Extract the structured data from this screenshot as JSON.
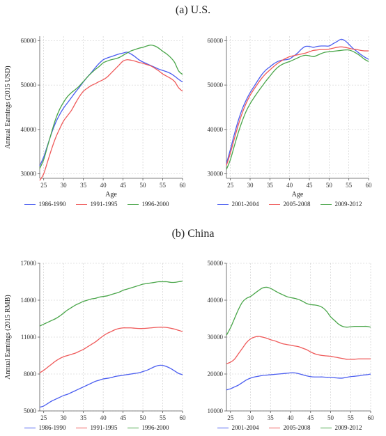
{
  "section_titles": {
    "us": "(a) U.S.",
    "china": "(b) China"
  },
  "colors": {
    "blue": "#4a5df0",
    "red": "#ef5a5a",
    "green": "#4aa64a"
  },
  "chart_data": [
    {
      "type": "line",
      "panel": "us-left",
      "xlabel": "Age",
      "ylabel": "Annual Earnings (2015 USD)",
      "xlim": [
        24,
        60
      ],
      "ylim": [
        29000,
        61000
      ],
      "xticks": [
        25,
        30,
        35,
        40,
        45,
        50,
        55,
        60
      ],
      "yticks": [
        30000,
        40000,
        50000,
        60000
      ],
      "x": [
        24,
        25,
        26,
        27,
        28,
        29,
        30,
        31,
        32,
        33,
        34,
        35,
        36,
        37,
        38,
        39,
        40,
        41,
        42,
        43,
        44,
        45,
        46,
        47,
        48,
        49,
        50,
        51,
        52,
        53,
        54,
        55,
        56,
        57,
        58,
        59,
        60
      ],
      "grid": true,
      "legend": "bottom",
      "series": [
        {
          "name": "1986-1990",
          "color": "blue",
          "values": [
            31800,
            33800,
            36500,
            39200,
            41500,
            43300,
            44800,
            46000,
            47200,
            48400,
            49500,
            50700,
            51800,
            52800,
            53900,
            54900,
            55700,
            56100,
            56400,
            56700,
            57000,
            57200,
            57400,
            57000,
            56400,
            55700,
            55200,
            54800,
            54400,
            54000,
            53600,
            53300,
            53000,
            52600,
            52000,
            51300,
            50700
          ]
        },
        {
          "name": "1991-1995",
          "color": "red",
          "values": [
            28500,
            30000,
            32800,
            35600,
            38100,
            40100,
            41900,
            43100,
            44300,
            45900,
            47400,
            48600,
            49300,
            49900,
            50300,
            50800,
            51200,
            51800,
            52700,
            53600,
            54500,
            55400,
            55700,
            55600,
            55400,
            55100,
            54900,
            54600,
            54300,
            53800,
            53200,
            52500,
            52000,
            51500,
            50800,
            49400,
            48600
          ]
        },
        {
          "name": "1996-2000",
          "color": "green",
          "values": [
            31200,
            33200,
            36300,
            39400,
            42300,
            44500,
            46100,
            47400,
            48300,
            49000,
            49800,
            50800,
            51800,
            52700,
            53500,
            54200,
            55000,
            55400,
            55700,
            55900,
            56200,
            56700,
            57200,
            57700,
            58000,
            58300,
            58500,
            58800,
            59000,
            58800,
            58300,
            57600,
            57000,
            56200,
            55100,
            53200,
            52400
          ]
        }
      ]
    },
    {
      "type": "line",
      "panel": "us-right",
      "xlabel": "Age",
      "ylabel": "",
      "xlim": [
        24,
        60
      ],
      "ylim": [
        29000,
        61000
      ],
      "xticks": [
        25,
        30,
        35,
        40,
        45,
        50,
        55,
        60
      ],
      "yticks": [
        30000,
        40000,
        50000,
        60000
      ],
      "x": [
        24,
        25,
        26,
        27,
        28,
        29,
        30,
        31,
        32,
        33,
        34,
        35,
        36,
        37,
        38,
        39,
        40,
        41,
        42,
        43,
        44,
        45,
        46,
        47,
        48,
        49,
        50,
        51,
        52,
        53,
        54,
        55,
        56,
        57,
        58,
        59,
        60
      ],
      "grid": true,
      "legend": "bottom",
      "series": [
        {
          "name": "2001-2004",
          "color": "blue",
          "values": [
            32300,
            35500,
            38900,
            42000,
            44600,
            46600,
            48300,
            49700,
            51100,
            52400,
            53400,
            54100,
            54800,
            55300,
            55600,
            55700,
            55900,
            56500,
            57200,
            58100,
            58700,
            58700,
            58500,
            58700,
            58800,
            58800,
            58800,
            59300,
            59800,
            60300,
            60000,
            59200,
            58300,
            57600,
            56900,
            56300,
            55800
          ]
        },
        {
          "name": "2005-2008",
          "color": "red",
          "values": [
            31900,
            34700,
            37900,
            41000,
            43700,
            45900,
            47700,
            49100,
            50400,
            51600,
            52600,
            53400,
            54200,
            54900,
            55500,
            56000,
            56400,
            56600,
            56800,
            57000,
            57200,
            57500,
            57800,
            57900,
            58000,
            58000,
            58100,
            58300,
            58500,
            58600,
            58500,
            58300,
            58100,
            58000,
            57800,
            57700,
            57700
          ]
        },
        {
          "name": "2009-2012",
          "color": "green",
          "values": [
            31000,
            33200,
            36300,
            39300,
            41900,
            44100,
            45800,
            47200,
            48500,
            49700,
            50900,
            52000,
            53100,
            54000,
            54600,
            55000,
            55300,
            55700,
            56100,
            56500,
            56700,
            56600,
            56400,
            56700,
            57100,
            57400,
            57500,
            57600,
            57700,
            57800,
            57900,
            57900,
            57600,
            57100,
            56500,
            55800,
            55300
          ]
        }
      ]
    },
    {
      "type": "line",
      "panel": "china-left",
      "xlabel": "",
      "ylabel": "Annual Earnings (2015 RMB)",
      "xlim": [
        24,
        60
      ],
      "ylim": [
        5000,
        17000
      ],
      "xticks": [
        25,
        30,
        35,
        40,
        45,
        50,
        55,
        60
      ],
      "yticks": [
        5000,
        8000,
        11000,
        14000,
        17000
      ],
      "x": [
        24,
        25,
        26,
        27,
        28,
        29,
        30,
        31,
        32,
        33,
        34,
        35,
        36,
        37,
        38,
        39,
        40,
        41,
        42,
        43,
        44,
        45,
        46,
        47,
        48,
        49,
        50,
        51,
        52,
        53,
        54,
        55,
        56,
        57,
        58,
        59,
        60
      ],
      "grid": true,
      "legend": "bottom",
      "series": [
        {
          "name": "1986-1990",
          "color": "blue",
          "values": [
            5300,
            5400,
            5600,
            5800,
            5950,
            6100,
            6250,
            6350,
            6500,
            6650,
            6800,
            6950,
            7100,
            7250,
            7400,
            7500,
            7600,
            7650,
            7700,
            7800,
            7850,
            7900,
            7950,
            8000,
            8050,
            8100,
            8200,
            8300,
            8450,
            8600,
            8700,
            8700,
            8600,
            8450,
            8250,
            8050,
            7950
          ]
        },
        {
          "name": "1991-1995",
          "color": "red",
          "values": [
            8100,
            8300,
            8550,
            8800,
            9050,
            9250,
            9400,
            9500,
            9600,
            9700,
            9850,
            10000,
            10200,
            10400,
            10600,
            10850,
            11100,
            11300,
            11450,
            11600,
            11700,
            11750,
            11750,
            11750,
            11720,
            11700,
            11700,
            11720,
            11750,
            11780,
            11800,
            11800,
            11780,
            11720,
            11650,
            11550,
            11450
          ]
        },
        {
          "name": "1996-2000",
          "color": "green",
          "values": [
            11900,
            12050,
            12200,
            12350,
            12500,
            12700,
            12950,
            13200,
            13400,
            13600,
            13750,
            13900,
            14000,
            14100,
            14150,
            14250,
            14300,
            14350,
            14450,
            14550,
            14650,
            14800,
            14900,
            15000,
            15100,
            15200,
            15300,
            15350,
            15400,
            15450,
            15500,
            15500,
            15500,
            15450,
            15450,
            15500,
            15550
          ]
        }
      ]
    },
    {
      "type": "line",
      "panel": "china-right",
      "xlabel": "",
      "ylabel": "",
      "xlim": [
        24,
        60
      ],
      "ylim": [
        10000,
        50000
      ],
      "xticks": [
        25,
        30,
        35,
        40,
        45,
        50,
        55,
        60
      ],
      "yticks": [
        10000,
        20000,
        30000,
        40000,
        50000
      ],
      "x": [
        24,
        25,
        26,
        27,
        28,
        29,
        30,
        31,
        32,
        33,
        34,
        35,
        36,
        37,
        38,
        39,
        40,
        41,
        42,
        43,
        44,
        45,
        46,
        47,
        48,
        49,
        50,
        51,
        52,
        53,
        54,
        55,
        56,
        57,
        58,
        59,
        60
      ],
      "grid": true,
      "legend": "bottom",
      "series": [
        {
          "name": "2001-2004",
          "color": "blue",
          "values": [
            15700,
            16000,
            16500,
            17000,
            17700,
            18400,
            18900,
            19200,
            19400,
            19600,
            19700,
            19800,
            19900,
            20000,
            20100,
            20200,
            20300,
            20300,
            20100,
            19800,
            19500,
            19300,
            19200,
            19200,
            19200,
            19100,
            19100,
            19000,
            18900,
            18900,
            19100,
            19300,
            19400,
            19500,
            19700,
            19800,
            20000
          ]
        },
        {
          "name": "2005-2008",
          "color": "red",
          "values": [
            22800,
            23200,
            24000,
            25500,
            27000,
            28500,
            29500,
            30000,
            30200,
            30000,
            29700,
            29300,
            29000,
            28600,
            28200,
            28000,
            27800,
            27600,
            27400,
            27000,
            26600,
            26000,
            25500,
            25200,
            25000,
            24900,
            24800,
            24600,
            24400,
            24200,
            24000,
            24000,
            24000,
            24100,
            24100,
            24100,
            24100
          ]
        },
        {
          "name": "2009-2012",
          "color": "green",
          "values": [
            30500,
            32500,
            35000,
            37500,
            39500,
            40500,
            41000,
            41800,
            42600,
            43300,
            43500,
            43200,
            42600,
            42000,
            41500,
            41000,
            40700,
            40500,
            40200,
            39700,
            39100,
            38800,
            38700,
            38500,
            38000,
            37000,
            35500,
            34500,
            33500,
            32900,
            32700,
            32800,
            32900,
            32900,
            32900,
            32900,
            32700
          ]
        }
      ]
    }
  ]
}
